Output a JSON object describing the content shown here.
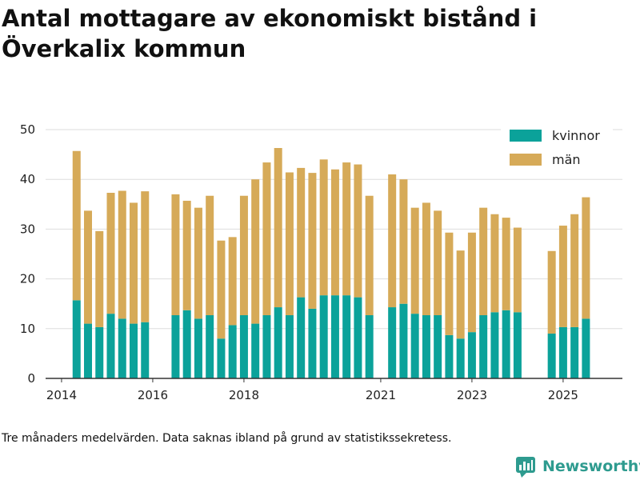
{
  "title": "Antal mottagare av ekonomiskt bistånd i Överkalix kommun",
  "footnote": "Tre månaders medelvärden. Data saknas ibland på grund av statistikssekretess.",
  "brand": {
    "name": "Newsworthy",
    "icon": "newsworthy-logo-icon",
    "color": "#2e9b8f"
  },
  "colors": {
    "kvinnor": "#0ba29a",
    "man": "#d6aa58",
    "grid": "#dddddd",
    "axis": "#333333"
  },
  "chart_data": {
    "type": "bar",
    "stacked": true,
    "title": "Antal mottagare av ekonomiskt bistånd i Överkalix kommun",
    "xlabel": "",
    "ylabel": "",
    "ylim": [
      0,
      50
    ],
    "yticks": [
      "0",
      "10",
      "20",
      "30",
      "40",
      "50"
    ],
    "xticks": [
      {
        "label": "2014",
        "x": 2014.0
      },
      {
        "label": "2016",
        "x": 2016.0
      },
      {
        "label": "2018",
        "x": 2018.0
      },
      {
        "label": "2021",
        "x": 2021.0
      },
      {
        "label": "2023",
        "x": 2023.0
      },
      {
        "label": "2025",
        "x": 2025.0
      }
    ],
    "xlim": [
      2013.65,
      2026.3
    ],
    "legend_position": "top-right",
    "x": [
      2014.33,
      2014.58,
      2014.83,
      2015.08,
      2015.33,
      2015.58,
      2015.83,
      2016.5,
      2016.75,
      2017.0,
      2017.25,
      2017.5,
      2017.75,
      2018.0,
      2018.25,
      2018.5,
      2018.75,
      2019.0,
      2019.25,
      2019.5,
      2019.75,
      2020.0,
      2020.25,
      2020.5,
      2020.75,
      2021.25,
      2021.5,
      2021.75,
      2022.0,
      2022.25,
      2022.5,
      2022.75,
      2023.0,
      2023.25,
      2023.5,
      2023.75,
      2024.0,
      2024.75,
      2025.0,
      2025.25,
      2025.5
    ],
    "series": [
      {
        "name": "kvinnor",
        "values": [
          15.7,
          11.0,
          10.3,
          13.0,
          12.0,
          11.0,
          11.3,
          12.7,
          13.7,
          12.0,
          12.7,
          8.0,
          10.7,
          12.7,
          11.0,
          12.7,
          14.3,
          12.7,
          16.3,
          14.0,
          16.7,
          16.7,
          16.7,
          16.3,
          12.7,
          14.3,
          15.0,
          13.0,
          12.7,
          12.7,
          8.7,
          8.0,
          9.3,
          12.7,
          13.3,
          13.7,
          13.3,
          9.0,
          10.3,
          10.3,
          12.0
        ]
      },
      {
        "name": "män",
        "values": [
          30.0,
          22.7,
          19.3,
          24.3,
          25.7,
          24.3,
          26.3,
          24.3,
          22.0,
          22.3,
          24.0,
          19.7,
          17.7,
          24.0,
          29.0,
          30.7,
          32.0,
          28.7,
          26.0,
          27.3,
          27.3,
          25.3,
          26.7,
          26.7,
          24.0,
          26.7,
          25.0,
          21.3,
          22.6,
          21.0,
          20.6,
          17.7,
          20.0,
          21.6,
          19.7,
          18.6,
          17.0,
          16.6,
          20.4,
          22.7,
          24.4
        ]
      }
    ]
  }
}
